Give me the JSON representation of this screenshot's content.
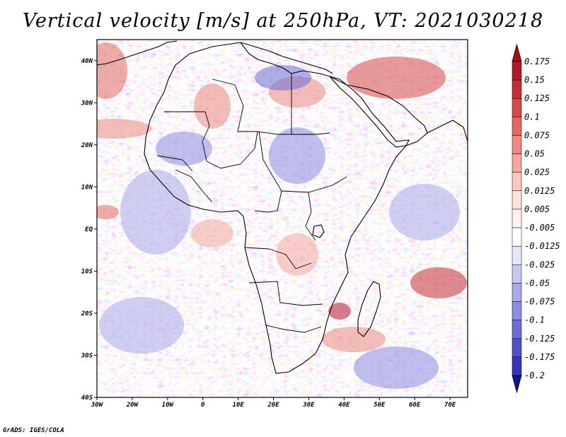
{
  "title": "Vertical velocity [m/s] at 250hPa, VT: 2021030218",
  "credit": "GrADS: IGES/COLA",
  "map": {
    "lon_range": [
      -30,
      75
    ],
    "lat_range": [
      -40,
      45
    ],
    "lat_ticks": [
      {
        "value": 40,
        "label": "40N"
      },
      {
        "value": 30,
        "label": "30N"
      },
      {
        "value": 20,
        "label": "20N"
      },
      {
        "value": 10,
        "label": "10N"
      },
      {
        "value": 0,
        "label": "EQ"
      },
      {
        "value": -10,
        "label": "10S"
      },
      {
        "value": -20,
        "label": "20S"
      },
      {
        "value": -30,
        "label": "30S"
      },
      {
        "value": -40,
        "label": "40S"
      }
    ],
    "lon_ticks": [
      {
        "value": -30,
        "label": "30W"
      },
      {
        "value": -20,
        "label": "20W"
      },
      {
        "value": -10,
        "label": "10W"
      },
      {
        "value": 0,
        "label": "0"
      },
      {
        "value": 10,
        "label": "10E"
      },
      {
        "value": 20,
        "label": "20E"
      },
      {
        "value": 30,
        "label": "30E"
      },
      {
        "value": 40,
        "label": "40E"
      },
      {
        "value": 50,
        "label": "50E"
      },
      {
        "value": 60,
        "label": "60E"
      },
      {
        "value": 70,
        "label": "70E"
      }
    ]
  },
  "colorbar": {
    "levels": [
      {
        "label": "0.175",
        "color": "#b2182b"
      },
      {
        "label": "0.15",
        "color": "#c42d35"
      },
      {
        "label": "0.125",
        "color": "#d44a48"
      },
      {
        "label": "0.1",
        "color": "#e06a62"
      },
      {
        "label": "0.075",
        "color": "#ea8a80"
      },
      {
        "label": "0.05",
        "color": "#f2a89e"
      },
      {
        "label": "0.025",
        "color": "#f8c7be"
      },
      {
        "label": "0.0125",
        "color": "#fce2dc"
      },
      {
        "label": "0.005",
        "color": "#fff1ee"
      },
      {
        "label": "-0.005",
        "color": "#ffffff"
      },
      {
        "label": "-0.0125",
        "color": "#e6e6fa"
      },
      {
        "label": "-0.025",
        "color": "#c8c8f2"
      },
      {
        "label": "-0.05",
        "color": "#aaaaea"
      },
      {
        "label": "-0.075",
        "color": "#8c8ce0"
      },
      {
        "label": "-0.1",
        "color": "#6e6ed6"
      },
      {
        "label": "-0.125",
        "color": "#5050c8"
      },
      {
        "label": "-0.175",
        "color": "#3434b4"
      },
      {
        "label": "-0.2",
        "color": "#1e1e9c"
      }
    ],
    "over_color": "#a50f15",
    "under_color": "#14148a"
  }
}
